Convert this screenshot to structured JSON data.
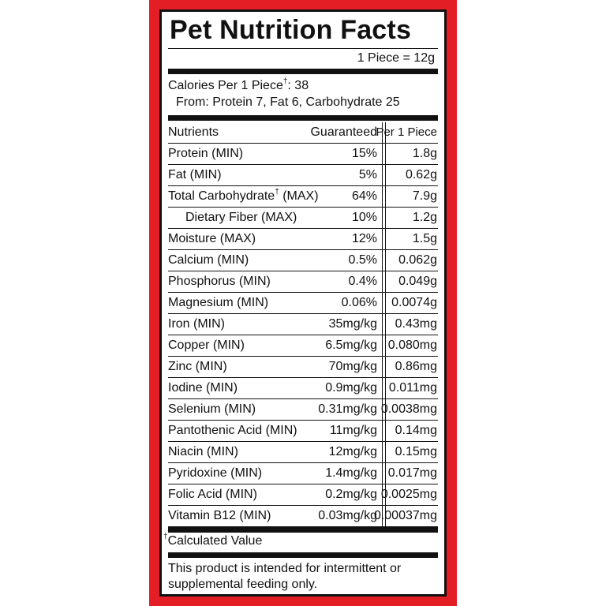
{
  "label": {
    "title": "Pet Nutrition Facts",
    "serving": "1 Piece = 12g",
    "calories_line": "Calories Per 1 Piece",
    "calories_dagger": "†",
    "calories_value": ": 38",
    "calories_breakdown": "From: Protein 7, Fat 6, Carbohydrate 25",
    "frame_color": "#e31e24"
  },
  "table": {
    "headers": {
      "nutrients": "Nutrients",
      "guaranteed": "Guaranteed",
      "per_piece": "Per 1 Piece"
    },
    "rows": [
      {
        "name": "Protein (MIN)",
        "guaranteed": "15%",
        "per_piece": "1.8g"
      },
      {
        "name": "Fat (MIN)",
        "guaranteed": "5%",
        "per_piece": "0.62g"
      },
      {
        "name": "Total Carbohydrate",
        "dagger": "†",
        "suffix": " (MAX)",
        "guaranteed": "64%",
        "per_piece": "7.9g"
      },
      {
        "name": "Dietary Fiber (MAX)",
        "guaranteed": "10%",
        "per_piece": "1.2g"
      },
      {
        "name": "Moisture (MAX)",
        "guaranteed": "12%",
        "per_piece": "1.5g"
      },
      {
        "name": "Calcium (MIN)",
        "guaranteed": "0.5%",
        "per_piece": "0.062g"
      },
      {
        "name": "Phosphorus (MIN)",
        "guaranteed": "0.4%",
        "per_piece": "0.049g"
      },
      {
        "name": "Magnesium (MIN)",
        "guaranteed": "0.06%",
        "per_piece": "0.0074g"
      },
      {
        "name": "Iron (MIN)",
        "guaranteed": "35mg/kg",
        "per_piece": "0.43mg"
      },
      {
        "name": "Copper (MIN)",
        "guaranteed": "6.5mg/kg",
        "per_piece": "0.080mg"
      },
      {
        "name": "Zinc (MIN)",
        "guaranteed": "70mg/kg",
        "per_piece": "0.86mg"
      },
      {
        "name": "Iodine (MIN)",
        "guaranteed": "0.9mg/kg",
        "per_piece": "0.011mg"
      },
      {
        "name": "Selenium (MIN)",
        "guaranteed": "0.31mg/kg",
        "per_piece": "0.0038mg"
      },
      {
        "name": "Pantothenic Acid (MIN)",
        "guaranteed": "11mg/kg",
        "per_piece": "0.14mg"
      },
      {
        "name": "Niacin (MIN)",
        "guaranteed": "12mg/kg",
        "per_piece": "0.15mg"
      },
      {
        "name": "Pyridoxine (MIN)",
        "guaranteed": "1.4mg/kg",
        "per_piece": "0.017mg"
      },
      {
        "name": "Folic Acid (MIN)",
        "guaranteed": "0.2mg/kg",
        "per_piece": "0.0025mg"
      },
      {
        "name": "Vitamin B12 (MIN)",
        "guaranteed": "0.03mg/kg",
        "per_piece": "0.00037mg"
      }
    ]
  },
  "footnote": {
    "dagger": "†",
    "text": "Calculated Value"
  },
  "notice": "This product is intended for intermittent or supplemental feeding only."
}
